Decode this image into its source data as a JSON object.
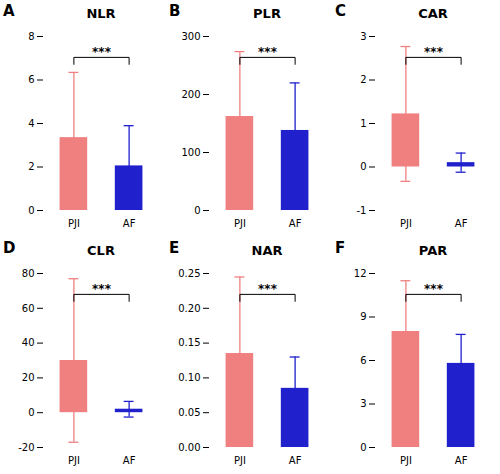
{
  "chart_data": [
    {
      "type": "bar",
      "panel_label": "A",
      "title": "NLR",
      "categories": [
        "PJI",
        "AF"
      ],
      "values": [
        3.35,
        2.05
      ],
      "errors": [
        3.0,
        1.85
      ],
      "colors": [
        "#F08080",
        "#2020CC"
      ],
      "ylim": [
        0,
        8
      ],
      "yticks": [
        0,
        2,
        4,
        6,
        8
      ],
      "annotations": [
        {
          "text": "***"
        }
      ]
    },
    {
      "type": "bar",
      "panel_label": "B",
      "title": "PLR",
      "categories": [
        "PJI",
        "AF"
      ],
      "values": [
        162,
        138
      ],
      "errors": [
        112,
        82
      ],
      "colors": [
        "#F08080",
        "#2020CC"
      ],
      "ylim": [
        0,
        300
      ],
      "yticks": [
        0,
        100,
        200,
        300
      ],
      "annotations": [
        {
          "text": "***"
        }
      ]
    },
    {
      "type": "bar",
      "panel_label": "C",
      "title": "CAR",
      "categories": [
        "PJI",
        "AF"
      ],
      "values": [
        1.22,
        0.1
      ],
      "errors": [
        1.55,
        0.22
      ],
      "colors": [
        "#F08080",
        "#2020CC"
      ],
      "ylim": [
        -1,
        3
      ],
      "yticks": [
        -1,
        0,
        1,
        2,
        3
      ],
      "annotations": [
        {
          "text": "***"
        }
      ]
    },
    {
      "type": "bar",
      "panel_label": "D",
      "title": "CLR",
      "categories": [
        "PJI",
        "AF"
      ],
      "values": [
        30.0,
        2.0
      ],
      "errors": [
        47.0,
        4.5
      ],
      "colors": [
        "#F08080",
        "#2020CC"
      ],
      "ylim": [
        -20,
        80
      ],
      "yticks": [
        -20,
        0,
        20,
        40,
        60,
        80
      ],
      "annotations": [
        {
          "text": "***"
        }
      ]
    },
    {
      "type": "bar",
      "panel_label": "E",
      "title": "NAR",
      "categories": [
        "PJI",
        "AF"
      ],
      "values": [
        0.135,
        0.085
      ],
      "errors": [
        0.11,
        0.045
      ],
      "colors": [
        "#F08080",
        "#2020CC"
      ],
      "ylim": [
        0,
        0.25
      ],
      "yticks": [
        {
          "value": 0,
          "label": "0.00"
        },
        0.05,
        {
          "value": 0.1,
          "label": "0.10"
        },
        0.15,
        {
          "value": 0.2,
          "label": "0.20"
        },
        0.25
      ],
      "annotations": [
        {
          "text": "***"
        }
      ]
    },
    {
      "type": "bar",
      "panel_label": "F",
      "title": "PAR",
      "categories": [
        "PJI",
        "AF"
      ],
      "values": [
        8.0,
        5.8
      ],
      "errors": [
        3.5,
        2.0
      ],
      "colors": [
        "#F08080",
        "#2020CC"
      ],
      "ylim": [
        0,
        12
      ],
      "yticks": [
        0,
        3,
        6,
        9,
        12
      ],
      "annotations": [
        {
          "text": "***"
        }
      ]
    }
  ]
}
